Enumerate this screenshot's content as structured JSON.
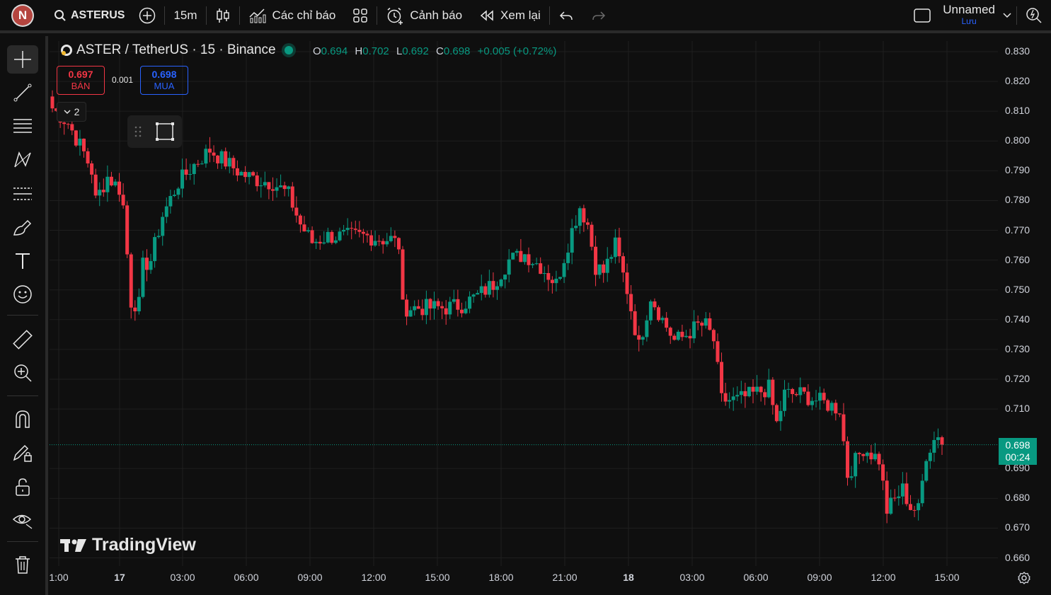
{
  "topbar": {
    "avatar_letter": "N",
    "symbol": "ASTERUS",
    "interval": "15m",
    "indicators_label": "Các chỉ báo",
    "alerts_label": "Cảnh báo",
    "replay_label": "Xem lại",
    "layout_name": "Unnamed",
    "save_label": "Lưu"
  },
  "legend": {
    "title": "ASTER / TetherUS · 15 · Binance",
    "o_label": "O",
    "o_value": "0.694",
    "h_label": "H",
    "h_value": "0.702",
    "l_label": "L",
    "l_value": "0.692",
    "c_label": "C",
    "c_value": "0.698",
    "change": "+0.005 (+0.72%)"
  },
  "trade": {
    "sell_price": "0.697",
    "sell_label": "BÁN",
    "spread": "0.001",
    "buy_price": "0.698",
    "buy_label": "MUA",
    "collapse_count": "2"
  },
  "brand": {
    "name": "TradingView"
  },
  "colors": {
    "up": "#089981",
    "down": "#f23645",
    "background": "#0f0f0f",
    "grid": "#1f1f1f"
  },
  "price_badge": {
    "price": "0.698",
    "countdown": "00:24"
  },
  "chart_data": {
    "type": "candlestick",
    "symbol": "ASTER / TetherUS",
    "exchange": "Binance",
    "interval": "15",
    "y_ticks": [
      "0.830",
      "0.820",
      "0.810",
      "0.800",
      "0.790",
      "0.780",
      "0.770",
      "0.760",
      "0.750",
      "0.740",
      "0.730",
      "0.720",
      "0.710",
      "0.690",
      "0.680",
      "0.670",
      "0.660"
    ],
    "x_ticks": [
      "1:00",
      "17",
      "03:00",
      "06:00",
      "09:00",
      "12:00",
      "15:00",
      "18:00",
      "21:00",
      "18",
      "03:00",
      "06:00",
      "09:00",
      "12:00",
      "15:00"
    ],
    "ylim": [
      0.655,
      0.834
    ],
    "last_price": 0.698,
    "grid": true,
    "close_path": [
      [
        0,
        0.811
      ],
      [
        4,
        0.806
      ],
      [
        8,
        0.796
      ],
      [
        10,
        0.79
      ],
      [
        11,
        0.78
      ],
      [
        14,
        0.788
      ],
      [
        17,
        0.784
      ],
      [
        18,
        0.778
      ],
      [
        20,
        0.746
      ],
      [
        22,
        0.745
      ],
      [
        23,
        0.758
      ],
      [
        25,
        0.76
      ],
      [
        28,
        0.775
      ],
      [
        32,
        0.786
      ],
      [
        36,
        0.792
      ],
      [
        40,
        0.797
      ],
      [
        44,
        0.793
      ],
      [
        48,
        0.789
      ],
      [
        52,
        0.787
      ],
      [
        56,
        0.786
      ],
      [
        60,
        0.782
      ],
      [
        63,
        0.772
      ],
      [
        66,
        0.766
      ],
      [
        70,
        0.768
      ],
      [
        75,
        0.768
      ],
      [
        80,
        0.768
      ],
      [
        84,
        0.767
      ],
      [
        86,
        0.767
      ],
      [
        88,
        0.765
      ],
      [
        89,
        0.744
      ],
      [
        92,
        0.744
      ],
      [
        96,
        0.744
      ],
      [
        100,
        0.744
      ],
      [
        104,
        0.745
      ],
      [
        108,
        0.748
      ],
      [
        112,
        0.752
      ],
      [
        116,
        0.76
      ],
      [
        120,
        0.762
      ],
      [
        124,
        0.758
      ],
      [
        128,
        0.752
      ],
      [
        132,
        0.77
      ],
      [
        134,
        0.778
      ],
      [
        136,
        0.772
      ],
      [
        138,
        0.758
      ],
      [
        140,
        0.756
      ],
      [
        143,
        0.765
      ],
      [
        146,
        0.75
      ],
      [
        149,
        0.731
      ],
      [
        152,
        0.748
      ],
      [
        155,
        0.74
      ],
      [
        158,
        0.733
      ],
      [
        160,
        0.734
      ],
      [
        164,
        0.738
      ],
      [
        166,
        0.738
      ],
      [
        168,
        0.733
      ],
      [
        170,
        0.713
      ],
      [
        174,
        0.713
      ],
      [
        178,
        0.715
      ],
      [
        182,
        0.717
      ],
      [
        184,
        0.705
      ],
      [
        186,
        0.715
      ],
      [
        190,
        0.715
      ],
      [
        194,
        0.713
      ],
      [
        198,
        0.711
      ],
      [
        200,
        0.71
      ],
      [
        202,
        0.688
      ],
      [
        206,
        0.697
      ],
      [
        210,
        0.693
      ],
      [
        212,
        0.676
      ],
      [
        216,
        0.683
      ],
      [
        218,
        0.677
      ],
      [
        220,
        0.676
      ],
      [
        222,
        0.695
      ],
      [
        225,
        0.702
      ],
      [
        226,
        0.698
      ]
    ]
  }
}
